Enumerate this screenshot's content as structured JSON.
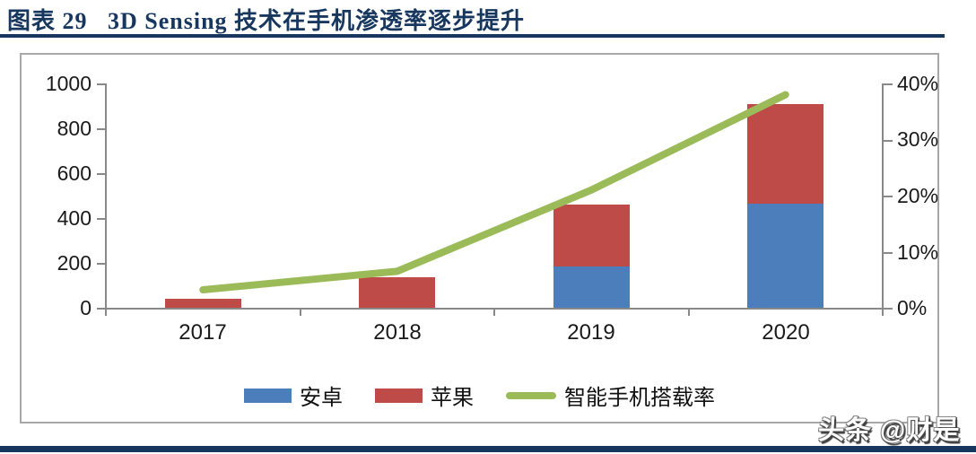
{
  "title": "图表 29   3D Sensing 技术在手机渗透率逐步提升",
  "watermark": "头条 @财是",
  "colors": {
    "accent_navy": "#17375E",
    "android_blue": "#4C7EBB",
    "apple_red": "#BE4B48",
    "line_green": "#9BBB59",
    "axis_gray": "#898989"
  },
  "chart_data": {
    "type": "bar",
    "subtype": "stacked-bar-with-line",
    "categories": [
      "2017",
      "2018",
      "2019",
      "2020"
    ],
    "series": [
      {
        "name": "安卓",
        "type": "bar",
        "axis": "left",
        "color": "#4C7EBB",
        "values": [
          0,
          0,
          185,
          465
        ]
      },
      {
        "name": "苹果",
        "type": "bar",
        "axis": "left",
        "color": "#BE4B48",
        "values": [
          40,
          135,
          275,
          445
        ]
      },
      {
        "name": "智能手机搭载率",
        "type": "line",
        "axis": "right",
        "color": "#9BBB59",
        "values": [
          3.2,
          6.5,
          21,
          38
        ]
      }
    ],
    "stacked_totals": [
      40,
      135,
      460,
      910
    ],
    "left_axis": {
      "min": 0,
      "max": 1000,
      "ticks": [
        "0",
        "200",
        "400",
        "600",
        "800",
        "1000"
      ]
    },
    "right_axis": {
      "min": 0,
      "max": 40,
      "unit": "%",
      "ticks": [
        "0%",
        "10%",
        "20%",
        "30%",
        "40%"
      ]
    },
    "grid": false,
    "legend_position": "bottom"
  }
}
